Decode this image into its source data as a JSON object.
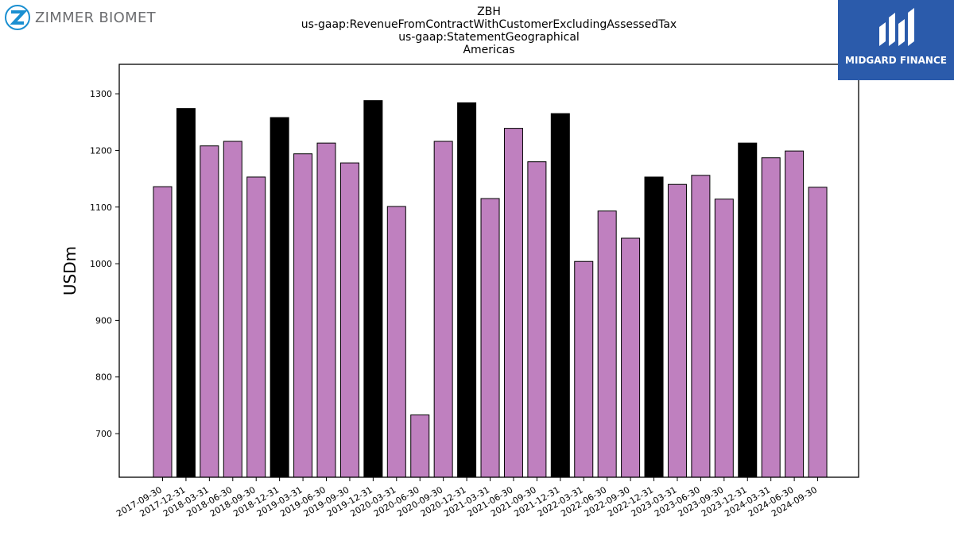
{
  "header": {
    "title_lines": [
      "ZBH",
      "us-gaap:RevenueFromContractWithCustomerExcludingAssessedTax",
      "us-gaap:StatementGeographical",
      "Americas"
    ]
  },
  "logos": {
    "left_text": "ZIMMER BIOMET",
    "right_text": "MIDGARD FINANCE"
  },
  "colors": {
    "bar_default": "#bf80bf",
    "bar_highlight": "#000000",
    "logo_right_bg": "#2b5bab",
    "logo_left_blue": "#1a8fd1"
  },
  "chart_data": {
    "type": "bar",
    "ylabel": "USDm",
    "ylim": [
      623,
      1352
    ],
    "yticks": [
      700,
      800,
      900,
      1000,
      1100,
      1200,
      1300
    ],
    "grid": false,
    "categories": [
      "2017-09-30",
      "2017-12-31",
      "2018-03-31",
      "2018-06-30",
      "2018-09-30",
      "2018-12-31",
      "2019-03-31",
      "2019-06-30",
      "2019-09-30",
      "2019-12-31",
      "2020-03-31",
      "2020-06-30",
      "2020-09-30",
      "2020-12-31",
      "2021-03-31",
      "2021-06-30",
      "2021-09-30",
      "2021-12-31",
      "2022-03-31",
      "2022-06-30",
      "2022-09-30",
      "2022-12-31",
      "2023-03-31",
      "2023-06-30",
      "2023-09-30",
      "2023-12-31",
      "2024-03-31",
      "2024-06-30",
      "2024-09-30"
    ],
    "values": [
      1136,
      1274,
      1208,
      1216,
      1153,
      1258,
      1194,
      1213,
      1178,
      1288,
      1101,
      733,
      1216,
      1284,
      1115,
      1239,
      1180,
      1265,
      1004,
      1093,
      1045,
      1153,
      1140,
      1156,
      1114,
      1213,
      1187,
      1199,
      1135
    ],
    "highlight": [
      false,
      true,
      false,
      false,
      false,
      true,
      false,
      false,
      false,
      true,
      false,
      false,
      false,
      true,
      false,
      false,
      false,
      true,
      false,
      false,
      false,
      true,
      false,
      false,
      false,
      true,
      false,
      false,
      false
    ]
  }
}
